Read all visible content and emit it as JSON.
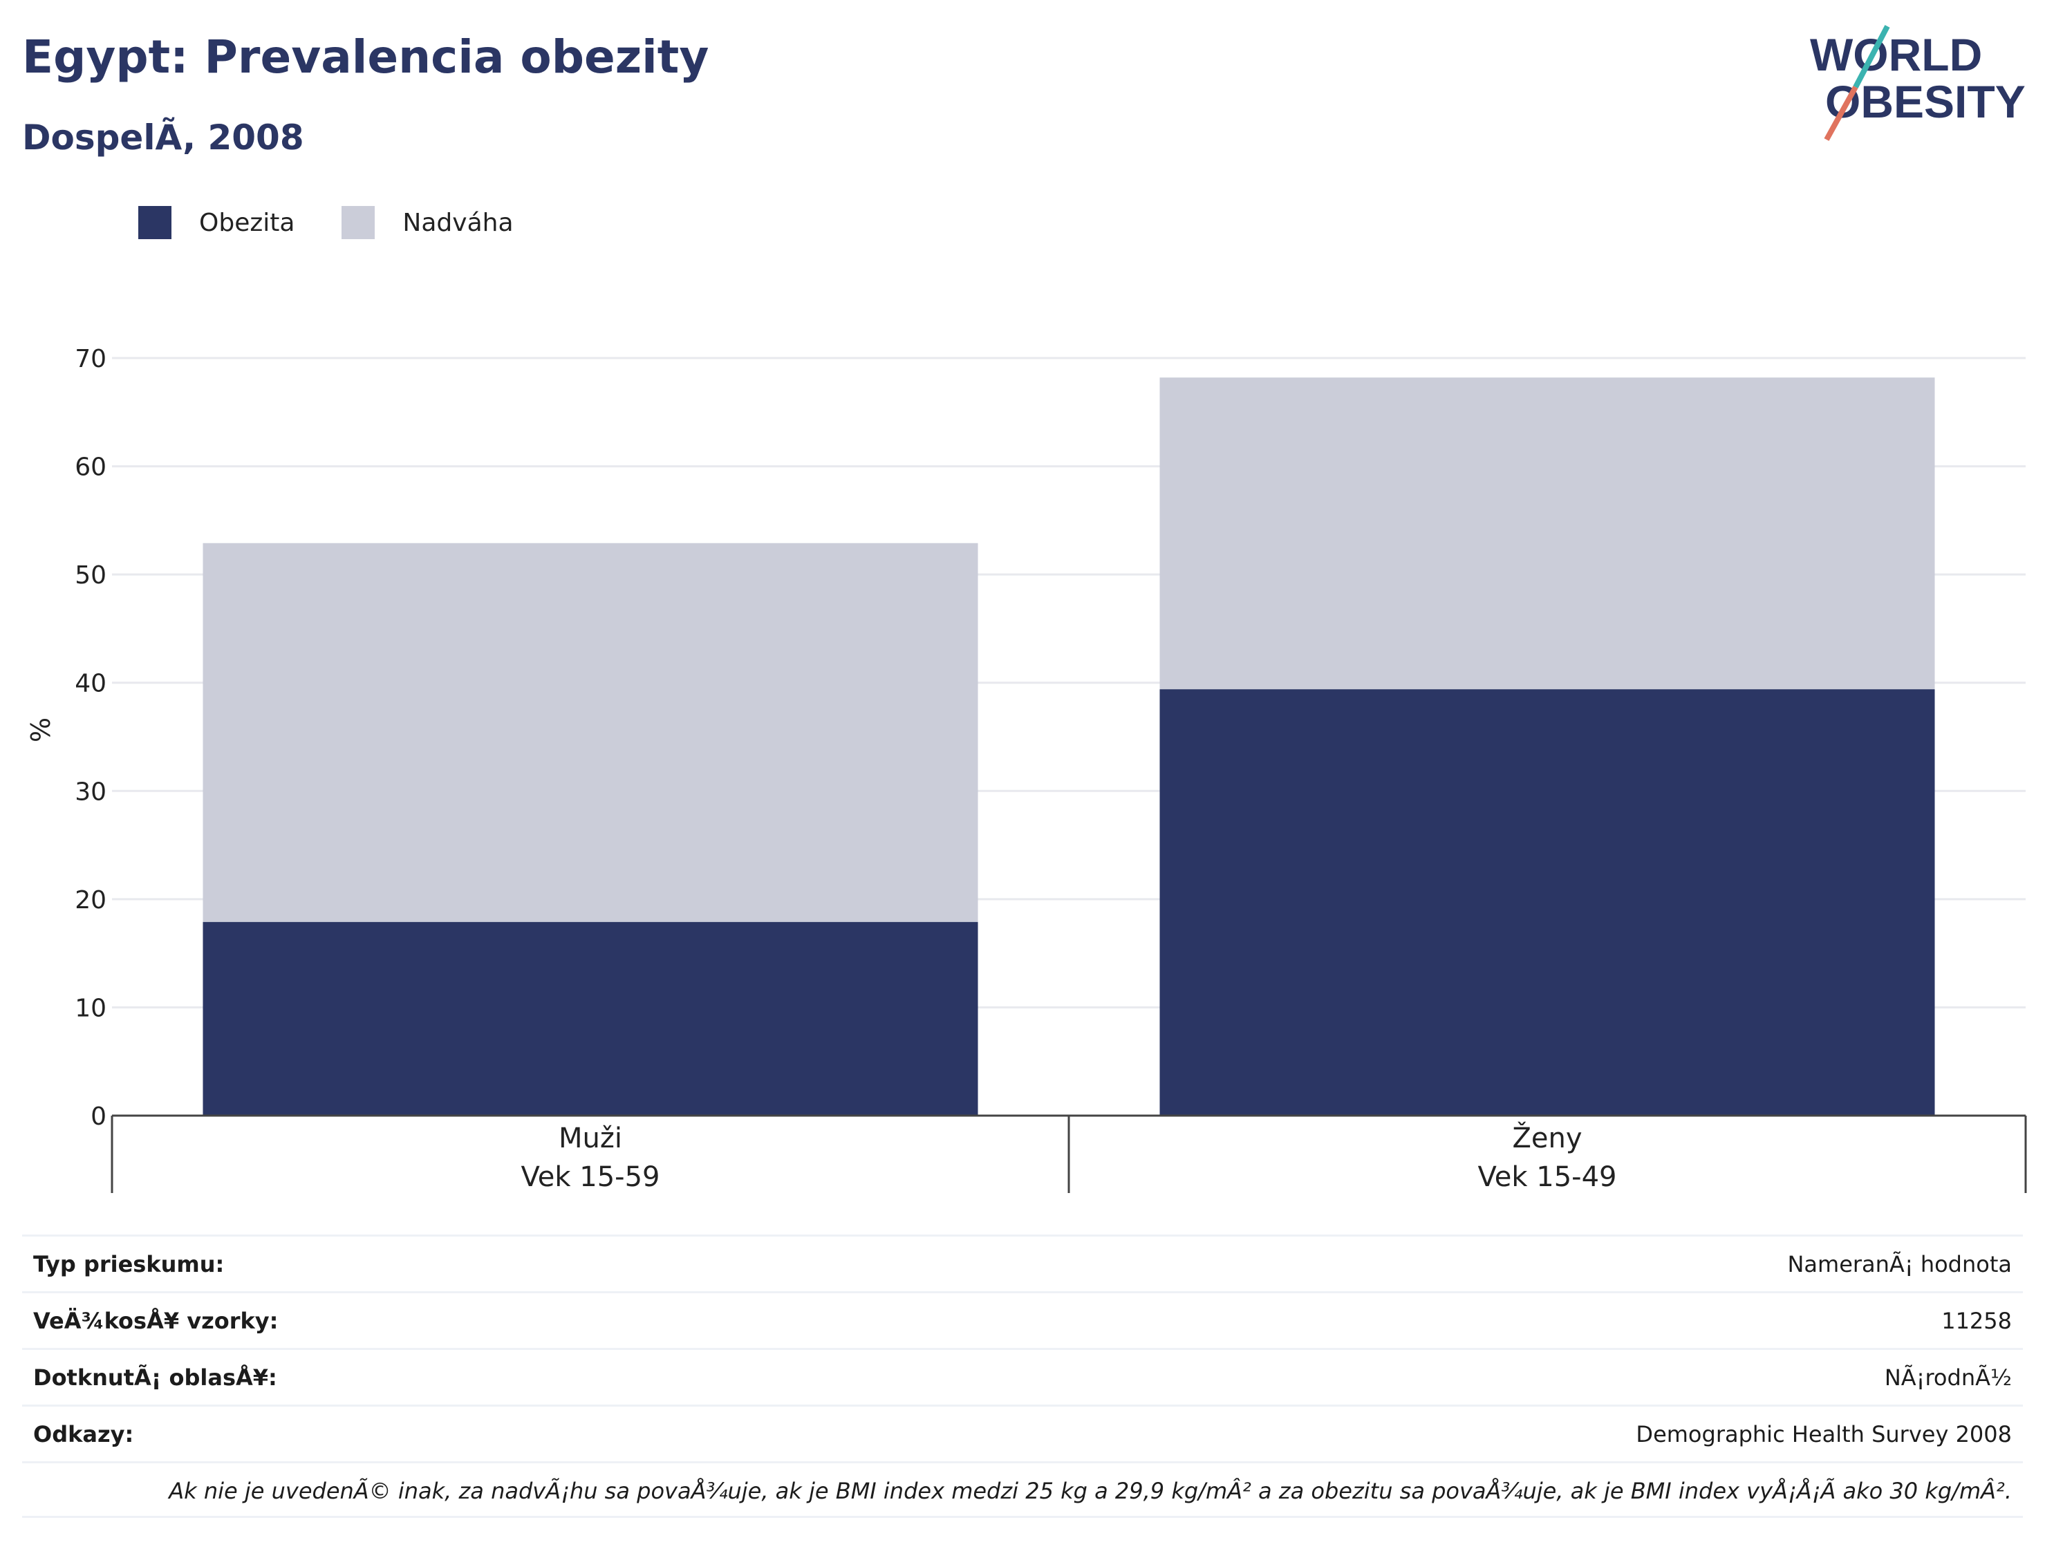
{
  "title": "Egypt: Prevalencia obezity",
  "subtitle": "DospelÃ, 2008",
  "logo": {
    "line1": "WORLD",
    "line2": "OBESITY"
  },
  "colors": {
    "obesity": "#2b3664",
    "overweight": "#cbcdd9",
    "title": "#2b3664",
    "grid": "#e8e9ee",
    "axis": "#444444"
  },
  "legend": {
    "obesity": "Obezita",
    "overweight": "Nadváha"
  },
  "chart_data": {
    "type": "bar",
    "stacked": true,
    "ylabel": "%",
    "ylim": [
      0,
      70
    ],
    "yticks": [
      0,
      10,
      20,
      30,
      40,
      50,
      60,
      70
    ],
    "categories": [
      {
        "name": "Muži",
        "age": "Vek 15-59"
      },
      {
        "name": "Ženy",
        "age": "Vek 15-49"
      }
    ],
    "series": [
      {
        "name": "Obezita",
        "values": [
          17.9,
          39.4
        ]
      },
      {
        "name": "Nadváha",
        "values": [
          35.0,
          28.8
        ]
      }
    ],
    "grid": true,
    "legend_position": "top-left"
  },
  "info": [
    {
      "label": "Typ prieskumu:",
      "value": "NameranÃ¡ hodnota"
    },
    {
      "label": "VeÄ¾kosÅ¥ vzorky:",
      "value": "11258"
    },
    {
      "label": "DotknutÃ¡ oblasÅ¥:",
      "value": "NÃ¡rodnÃ½"
    },
    {
      "label": "Odkazy:",
      "value": "Demographic Health Survey 2008"
    }
  ],
  "footnote": "Ak nie je uvedenÃ© inak, za nadvÃ¡hu sa povaÅ¾uje, ak je BMI index medzi 25 kg a 29,9 kg/mÂ² a za obezitu sa povaÅ¾uje, ak je BMI index vyÅ¡Å¡Ã ako 30 kg/mÂ²."
}
